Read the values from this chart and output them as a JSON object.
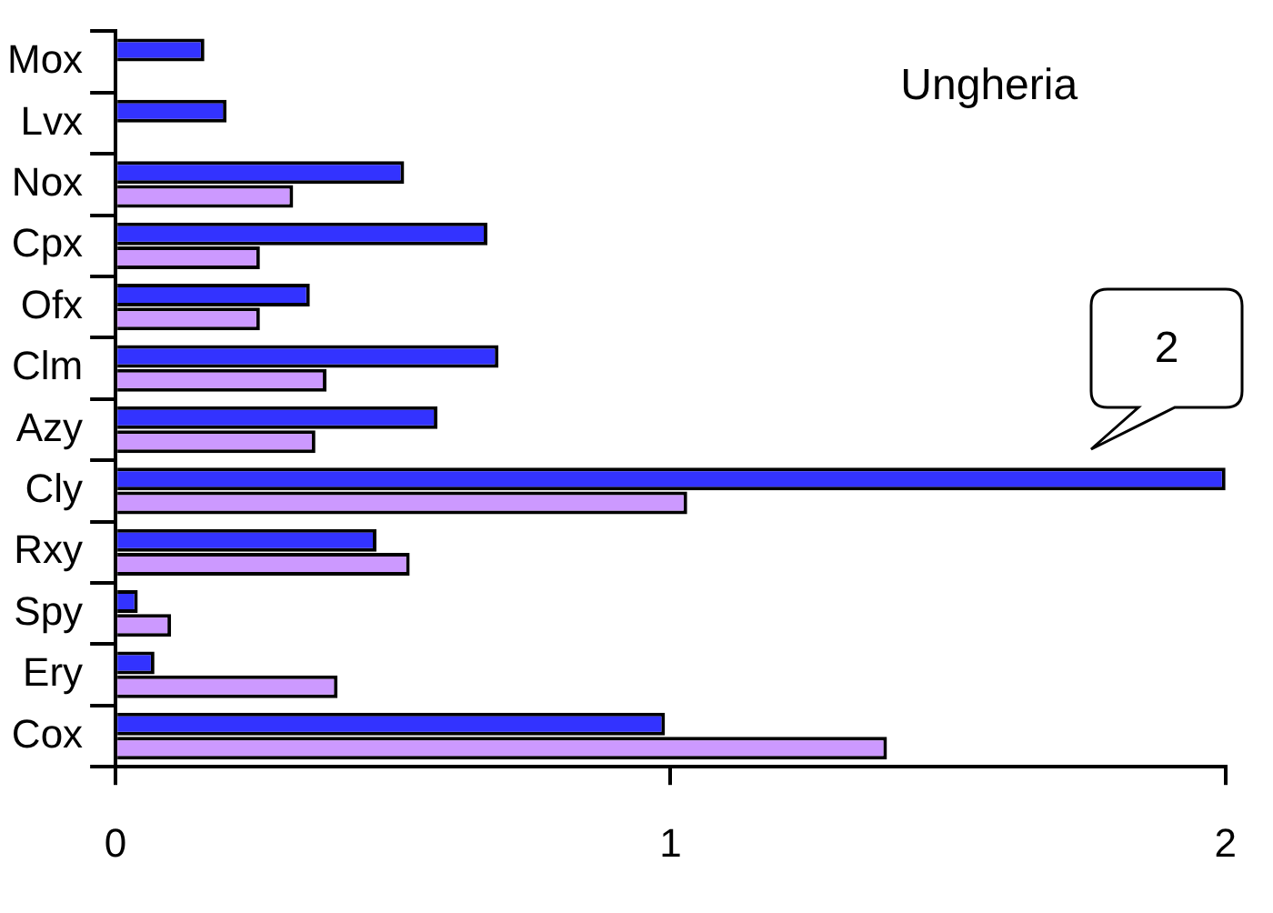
{
  "chart_data": {
    "type": "bar",
    "orientation": "horizontal",
    "title": "Ungheria",
    "categories": [
      "Mox",
      "Lvx",
      "Nox",
      "Cpx",
      "Ofx",
      "Clm",
      "Azy",
      "Cly",
      "Rxy",
      "Spy",
      "Ery",
      "Cox"
    ],
    "series": [
      {
        "color": "#3333ff",
        "values": [
          0.16,
          0.2,
          0.52,
          0.67,
          0.35,
          0.69,
          0.58,
          2,
          0.47,
          0.04,
          0.07,
          0.99
        ]
      },
      {
        "color": "#cc99ff",
        "values": [
          null,
          null,
          0.32,
          0.26,
          0.26,
          0.38,
          0.36,
          1.03,
          0.53,
          0.1,
          0.4,
          1.39
        ]
      }
    ],
    "xlim": [
      0,
      2
    ],
    "xticks": [
      0,
      1,
      2
    ],
    "annotations": [
      "2"
    ]
  }
}
